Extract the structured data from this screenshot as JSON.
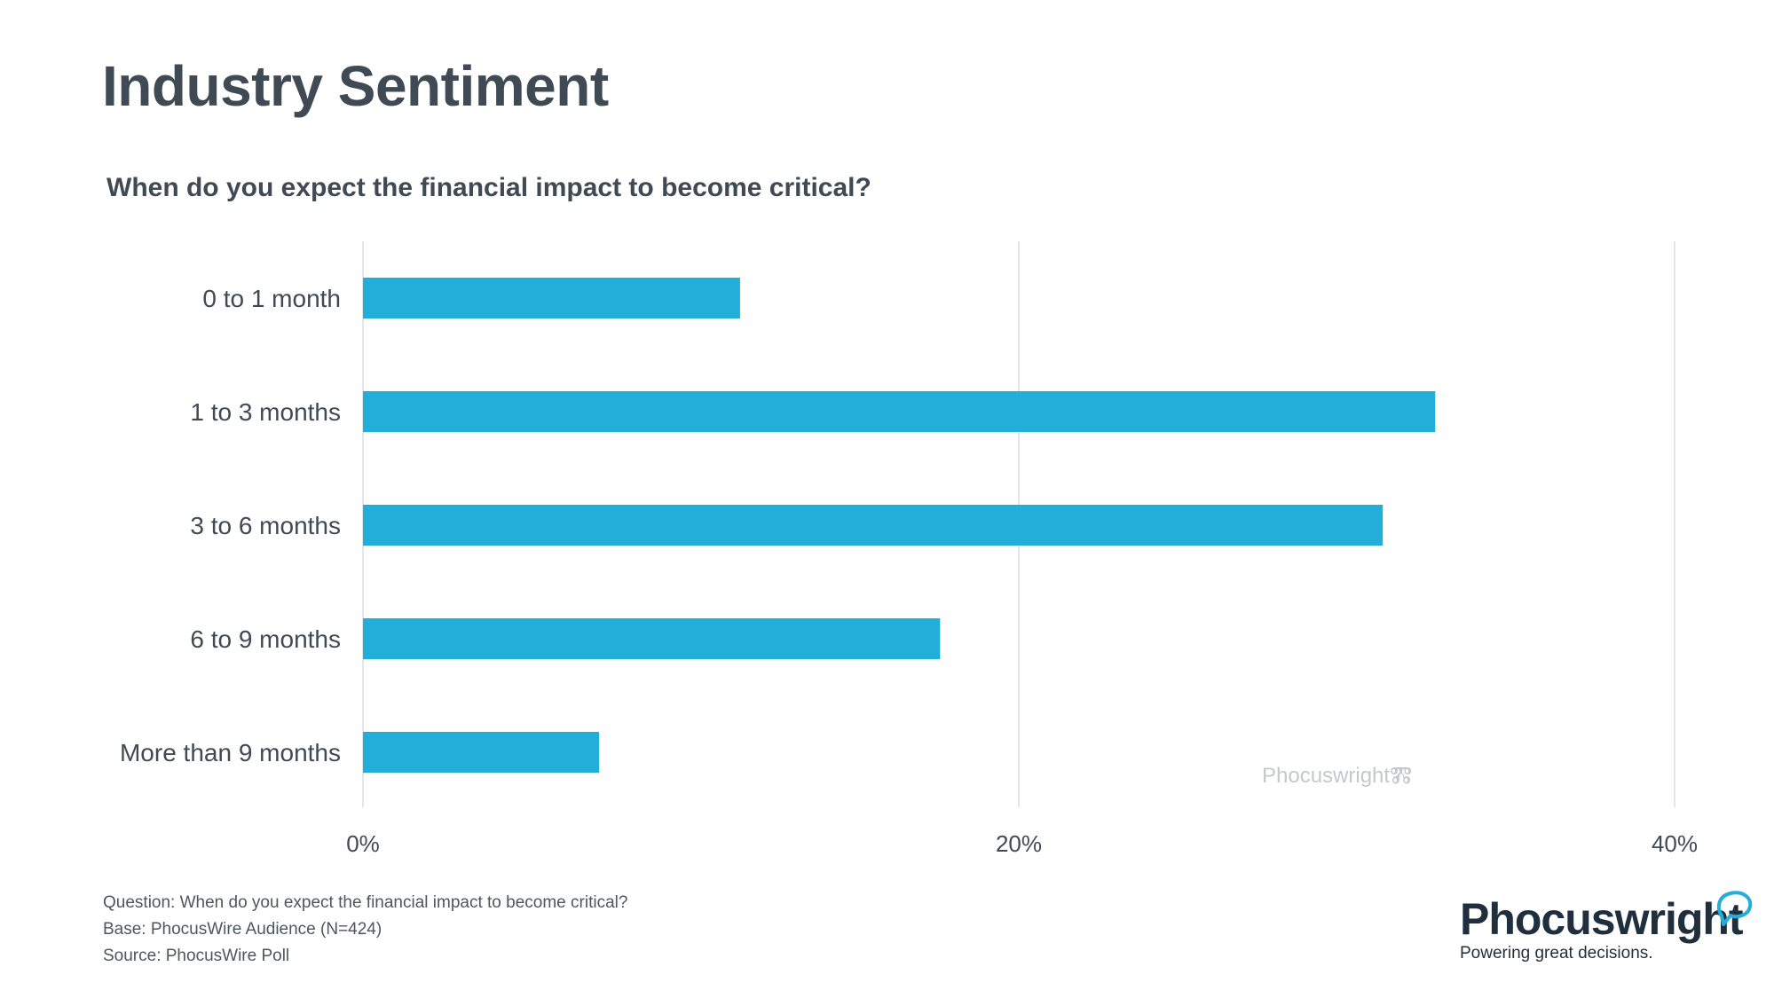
{
  "header": {
    "title": "Industry Sentiment",
    "subtitle": "When do you expect the financial impact to become critical?"
  },
  "chart_data": {
    "type": "bar",
    "orientation": "horizontal",
    "categories": [
      "0 to 1 month",
      "1 to 3 months",
      "3 to 6 months",
      "6 to 9 months",
      "More than 9 months"
    ],
    "values": [
      11.5,
      32.7,
      31.1,
      17.6,
      7.2
    ],
    "unit": "%",
    "xlim": [
      0,
      40
    ],
    "ticks": [
      "0%",
      "20%",
      "40%"
    ],
    "tick_values": [
      0,
      20,
      40
    ],
    "grid": true,
    "bar_color": "#22aed9",
    "grid_color": "#e4e6e8"
  },
  "watermark": {
    "text": "Phocuswright"
  },
  "footnotes": {
    "question": "Question: When do you expect the financial impact to become critical?",
    "base": "Base: PhocusWire Audience (N=424)",
    "source": "Source: PhocusWire Poll"
  },
  "logo": {
    "name": "Phocuswright",
    "tagline": "Powering great decisions.",
    "accent_color": "#22aed9",
    "icon": "speech-bubble-icon"
  }
}
